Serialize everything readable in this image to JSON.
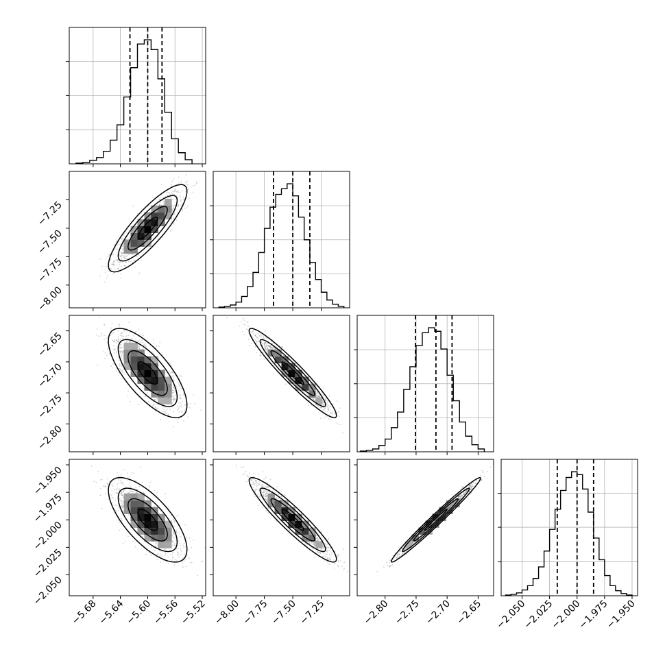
{
  "chart_data": {
    "type": "corner",
    "grid": true,
    "parameters": [
      {
        "index": 0,
        "range": [
          -5.715,
          -5.515
        ],
        "ticks": [
          -5.68,
          -5.64,
          -5.6,
          -5.56,
          -5.52
        ],
        "tick_labels": [
          "−5.68",
          "−5.64",
          "−5.60",
          "−5.56",
          "−5.52"
        ],
        "median": -5.6,
        "q16": -5.626,
        "q84": -5.579,
        "sigma": 0.024
      },
      {
        "index": 1,
        "range": [
          -8.2,
          -7.0
        ],
        "ticks": [
          -8.0,
          -7.75,
          -7.5,
          -7.25
        ],
        "tick_labels": [
          "−8.00",
          "−7.75",
          "−7.50",
          "−7.25"
        ],
        "median": -7.5,
        "q16": -7.67,
        "q84": -7.35,
        "sigma": 0.16
      },
      {
        "index": 2,
        "range": [
          -2.845,
          -2.625
        ],
        "ticks": [
          -2.8,
          -2.75,
          -2.7,
          -2.65
        ],
        "tick_labels": [
          "−2.80",
          "−2.75",
          "−2.70",
          "−2.65"
        ],
        "median": -2.718,
        "q16": -2.751,
        "q84": -2.692,
        "sigma": 0.03
      },
      {
        "index": 3,
        "range": [
          -2.069,
          -1.945
        ],
        "ticks": [
          -2.05,
          -2.025,
          -2.0,
          -1.975,
          -1.95
        ],
        "tick_labels": [
          "−2.050",
          "−2.025",
          "−2.000",
          "−1.975",
          "−1.950"
        ],
        "median": -2.0,
        "q16": -2.018,
        "q84": -1.985,
        "sigma": 0.016
      }
    ],
    "histograms": [
      {
        "param": 0,
        "bin_edges": [
          -5.705,
          -5.695,
          -5.685,
          -5.675,
          -5.665,
          -5.655,
          -5.645,
          -5.635,
          -5.625,
          -5.615,
          -5.605,
          -5.595,
          -5.585,
          -5.575,
          -5.565,
          -5.555,
          -5.545,
          -5.535
        ],
        "counts": [
          1,
          2,
          5,
          9,
          18,
          34,
          56,
          96,
          138,
          172,
          178,
          164,
          122,
          74,
          36,
          16,
          6
        ]
      },
      {
        "param": 1,
        "bin_edges": [
          -8.15,
          -8.1,
          -8.05,
          -8.0,
          -7.95,
          -7.9,
          -7.85,
          -7.8,
          -7.75,
          -7.7,
          -7.65,
          -7.6,
          -7.55,
          -7.5,
          -7.45,
          -7.4,
          -7.35,
          -7.3,
          -7.25,
          -7.2,
          -7.15,
          -7.1,
          -7.05
        ],
        "counts": [
          1,
          2,
          4,
          8,
          16,
          30,
          50,
          78,
          112,
          142,
          160,
          168,
          175,
          158,
          128,
          96,
          64,
          40,
          22,
          11,
          5,
          2
        ]
      },
      {
        "param": 2,
        "bin_edges": [
          -2.84,
          -2.83,
          -2.82,
          -2.81,
          -2.8,
          -2.79,
          -2.78,
          -2.77,
          -2.76,
          -2.75,
          -2.74,
          -2.73,
          -2.72,
          -2.71,
          -2.7,
          -2.69,
          -2.68,
          -2.67,
          -2.66,
          -2.65,
          -2.64
        ],
        "counts": [
          1,
          2,
          4,
          9,
          18,
          34,
          56,
          88,
          120,
          150,
          168,
          175,
          170,
          145,
          108,
          72,
          42,
          22,
          10,
          4
        ]
      },
      {
        "param": 3,
        "bin_edges": [
          -2.065,
          -2.06,
          -2.055,
          -2.05,
          -2.045,
          -2.04,
          -2.035,
          -2.03,
          -2.025,
          -2.02,
          -2.015,
          -2.01,
          -2.005,
          -2.0,
          -1.995,
          -1.99,
          -1.985,
          -1.98,
          -1.975,
          -1.97,
          -1.965,
          -1.96,
          -1.955,
          -1.95
        ],
        "counts": [
          1,
          2,
          4,
          8,
          14,
          24,
          40,
          62,
          92,
          120,
          146,
          164,
          172,
          168,
          148,
          116,
          80,
          50,
          28,
          14,
          7,
          3,
          1
        ]
      }
    ],
    "pairs": [
      {
        "x_param": 0,
        "y_param": 1,
        "correlation": 0.85
      },
      {
        "x_param": 0,
        "y_param": 2,
        "correlation": -0.72
      },
      {
        "x_param": 1,
        "y_param": 2,
        "correlation": -0.95
      },
      {
        "x_param": 0,
        "y_param": 3,
        "correlation": -0.7
      },
      {
        "x_param": 1,
        "y_param": 3,
        "correlation": -0.93
      },
      {
        "x_param": 2,
        "y_param": 3,
        "correlation": 0.985
      }
    ],
    "contour_levels_sigma": [
      0.5,
      1.0,
      1.5,
      2.0
    ],
    "colors": {
      "ink": "#000000",
      "grid": "#b0b0b0",
      "scatter": "#7f7f7f"
    }
  }
}
